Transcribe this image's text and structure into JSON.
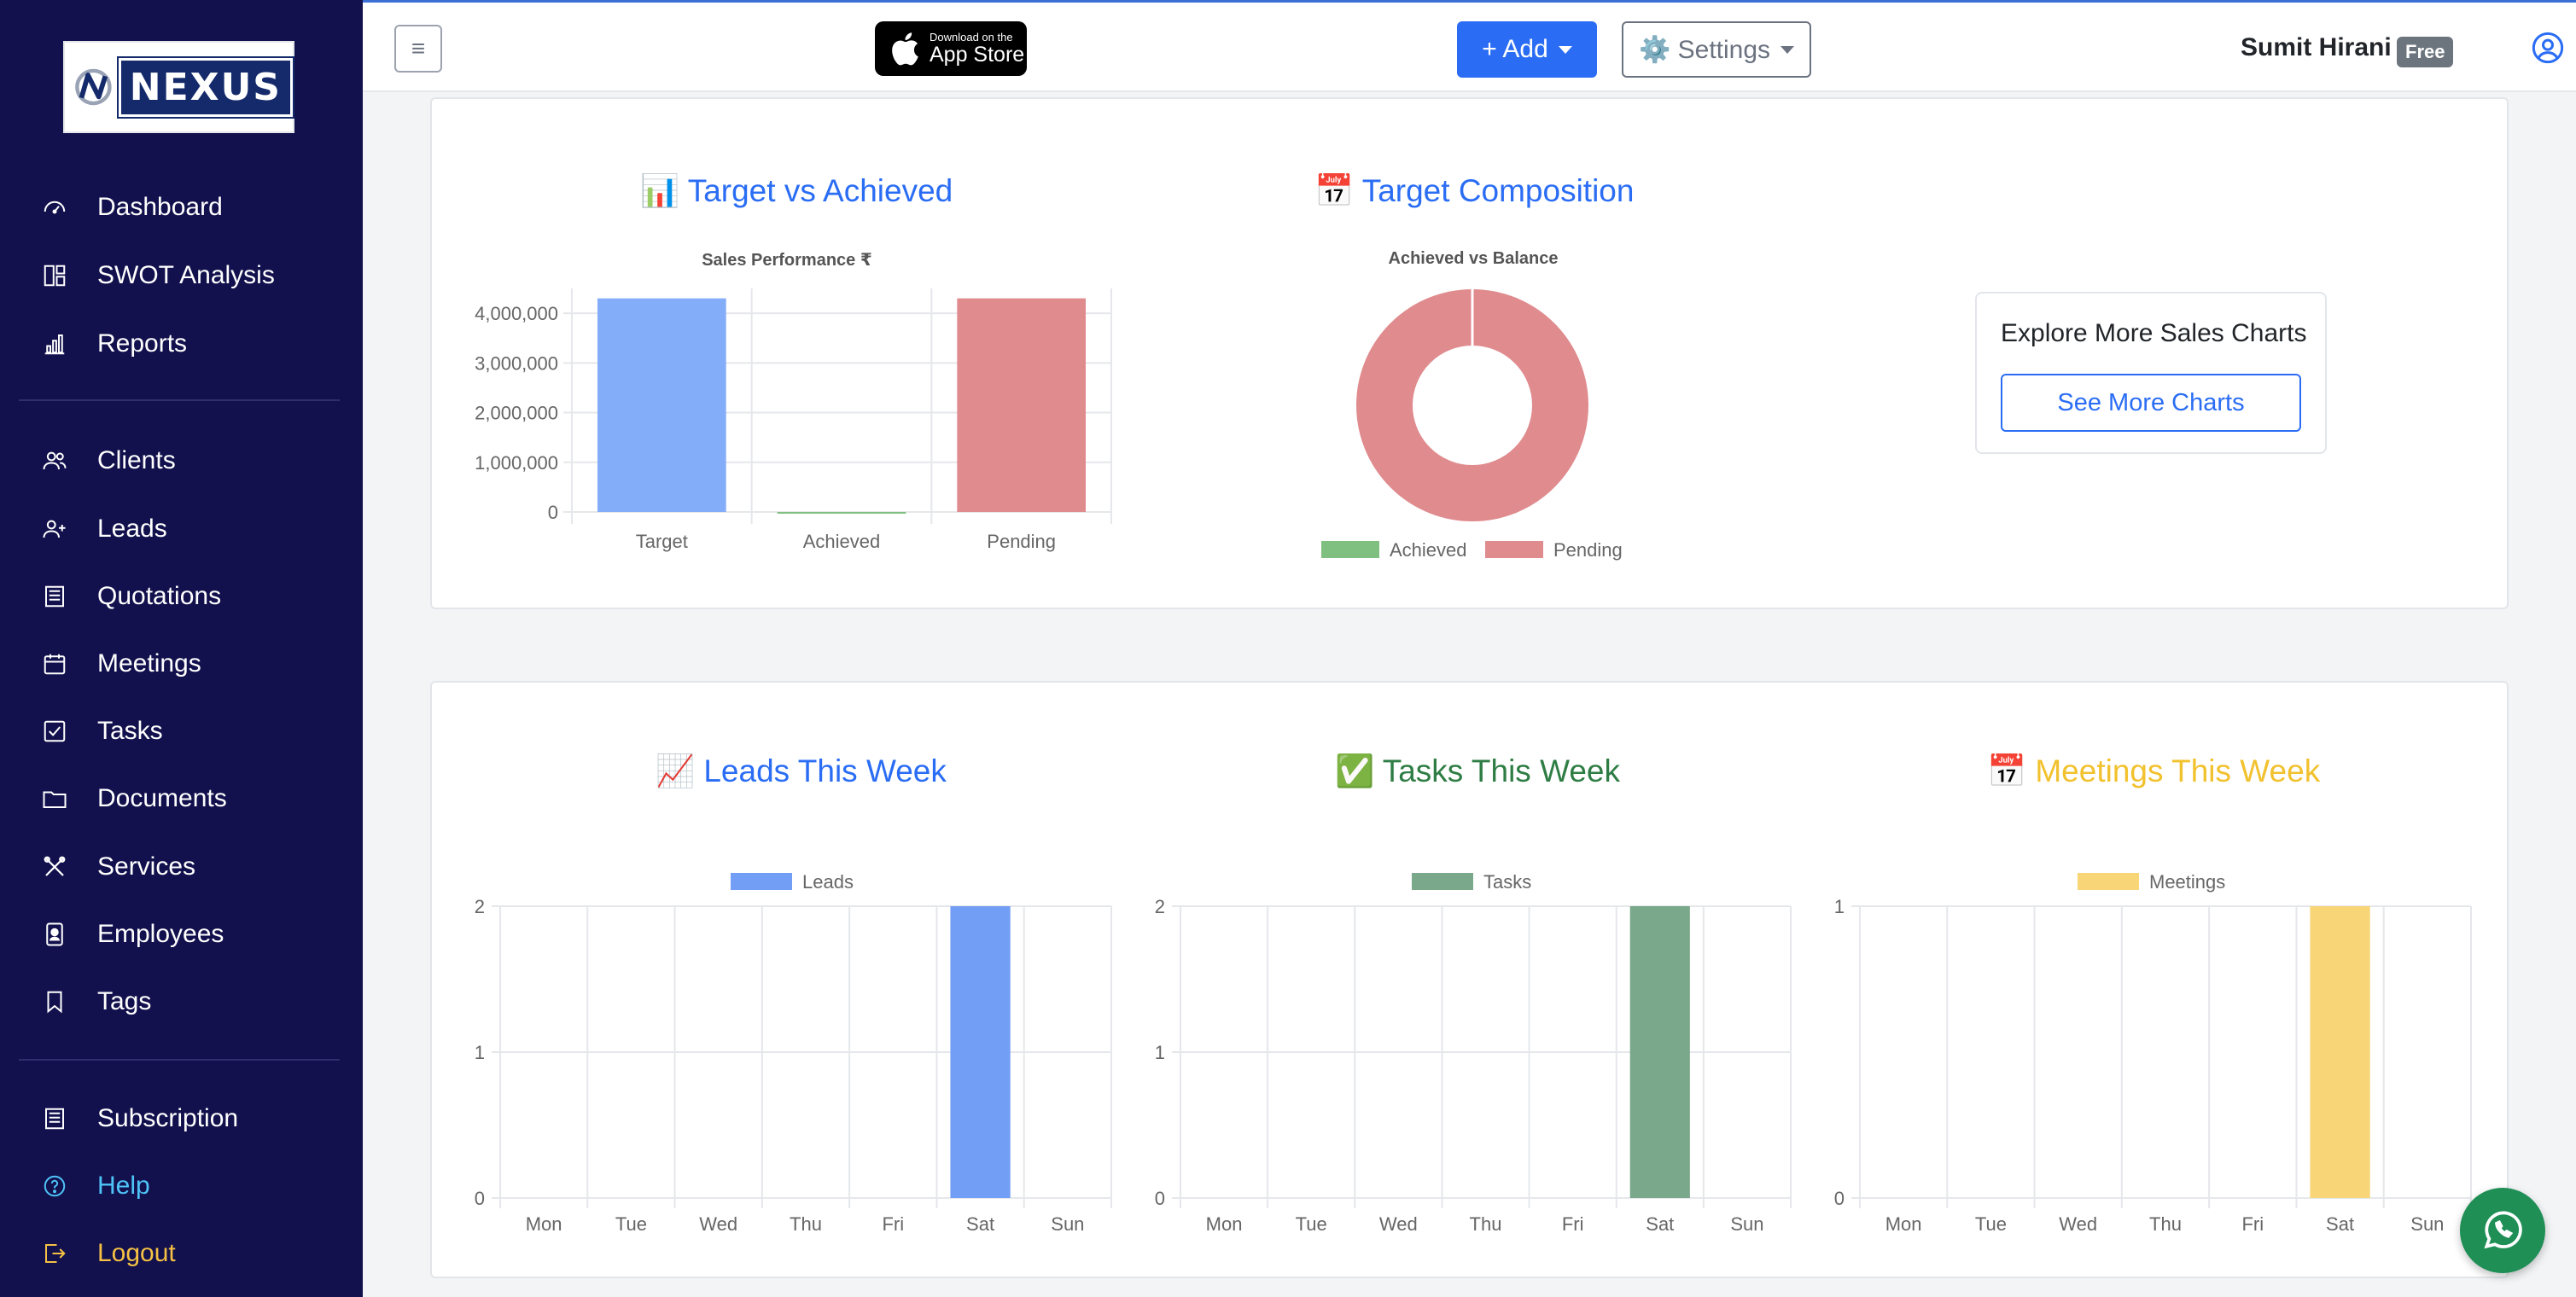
{
  "brand": {
    "name": "NEXUS"
  },
  "sidebar": {
    "items": [
      {
        "label": "Dashboard",
        "icon": "gauge-icon"
      },
      {
        "label": "SWOT Analysis",
        "icon": "layout-icon"
      },
      {
        "label": "Reports",
        "icon": "bar-chart-icon"
      },
      {
        "label": "Clients",
        "icon": "users-icon"
      },
      {
        "label": "Leads",
        "icon": "user-plus-icon"
      },
      {
        "label": "Quotations",
        "icon": "receipt-icon"
      },
      {
        "label": "Meetings",
        "icon": "calendar-icon"
      },
      {
        "label": "Tasks",
        "icon": "check-square-icon"
      },
      {
        "label": "Documents",
        "icon": "folder-icon"
      },
      {
        "label": "Services",
        "icon": "tools-icon"
      },
      {
        "label": "Employees",
        "icon": "id-badge-icon"
      },
      {
        "label": "Tags",
        "icon": "bookmark-icon"
      },
      {
        "label": "Subscription",
        "icon": "receipt-icon"
      },
      {
        "label": "Help",
        "icon": "question-circle-icon"
      },
      {
        "label": "Logout",
        "icon": "logout-icon"
      }
    ]
  },
  "topbar": {
    "appstore_small": "Download on the",
    "appstore_big": "App Store",
    "add_label": "+ Add",
    "settings_label": "⚙️ Settings",
    "user_name": "Sumit Hirani",
    "plan_badge": "Free"
  },
  "explore": {
    "title": "Explore More Sales Charts",
    "button": "See More Charts"
  },
  "colors": {
    "sidebar_bg": "#12114d",
    "accent_blue": "#2a6df4",
    "target_bar": "#84adf9",
    "pending_bar": "#e08b8e",
    "achieved_green": "#7fbf7f",
    "leads_bar": "#739ef5",
    "tasks_bar": "#7aa88a",
    "meetings_bar": "#f8d677"
  },
  "chart_data": [
    {
      "type": "bar",
      "heading_emoji": "📊",
      "heading": "Target vs Achieved",
      "title": "Sales Performance ₹",
      "categories": [
        "Target",
        "Achieved",
        "Pending"
      ],
      "values": [
        4300000,
        0,
        4300000
      ],
      "ylim": [
        0,
        4500000
      ],
      "yticks": [
        0,
        1000000,
        2000000,
        3000000,
        4000000
      ],
      "ytick_labels": [
        "0",
        "1,000,000",
        "2,000,000",
        "3,000,000",
        "4,000,000"
      ],
      "grid": true
    },
    {
      "type": "pie",
      "heading_emoji": "📅",
      "heading": "Target Composition",
      "title": "Achieved vs Balance",
      "labels": [
        "Achieved",
        "Pending"
      ],
      "values": [
        0,
        4300000
      ],
      "legend": "bottom"
    },
    {
      "type": "bar",
      "heading_emoji": "📈",
      "heading": "Leads This Week",
      "categories": [
        "Mon",
        "Tue",
        "Wed",
        "Thu",
        "Fri",
        "Sat",
        "Sun"
      ],
      "series": [
        {
          "name": "Leads",
          "values": [
            0,
            0,
            0,
            0,
            0,
            2,
            0
          ]
        }
      ],
      "ylim": [
        0,
        2
      ],
      "yticks": [
        0,
        1,
        2
      ],
      "legend": "top"
    },
    {
      "type": "bar",
      "heading_emoji": "✅",
      "heading": "Tasks This Week",
      "categories": [
        "Mon",
        "Tue",
        "Wed",
        "Thu",
        "Fri",
        "Sat",
        "Sun"
      ],
      "series": [
        {
          "name": "Tasks",
          "values": [
            0,
            0,
            0,
            0,
            0,
            2,
            0
          ]
        }
      ],
      "ylim": [
        0,
        2
      ],
      "yticks": [
        0,
        1,
        2
      ],
      "legend": "top"
    },
    {
      "type": "bar",
      "heading_emoji": "📅",
      "heading": "Meetings This Week",
      "categories": [
        "Mon",
        "Tue",
        "Wed",
        "Thu",
        "Fri",
        "Sat",
        "Sun"
      ],
      "series": [
        {
          "name": "Meetings",
          "values": [
            0,
            0,
            0,
            0,
            0,
            1,
            0
          ]
        }
      ],
      "ylim": [
        0,
        1
      ],
      "yticks": [
        0,
        1
      ],
      "legend": "top"
    }
  ]
}
